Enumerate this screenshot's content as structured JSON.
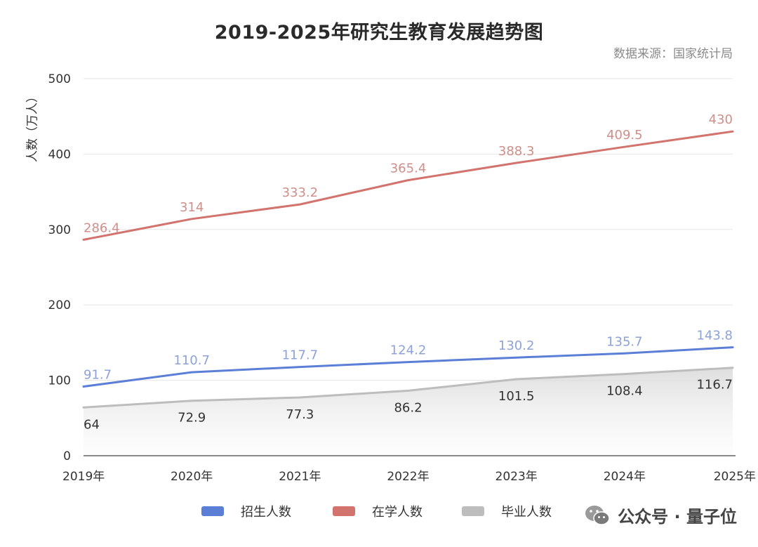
{
  "title": "2019-2025年研究生教育发展趋势图",
  "source": "数据来源：国家统计局",
  "watermark": "公众号 · 量子位",
  "chart_data": {
    "type": "line",
    "title": "2019-2025年研究生教育发展趋势图",
    "ylabel": "人数（万人）",
    "xlabel": "",
    "categories": [
      "2019年",
      "2020年",
      "2021年",
      "2022年",
      "2023年",
      "2024年",
      "2025年"
    ],
    "ylim": [
      0,
      500
    ],
    "yticks": [
      0,
      100,
      200,
      300,
      400,
      500
    ],
    "grid": true,
    "legend_position": "bottom",
    "series": [
      {
        "name": "招生人数",
        "color": "#5b7fd6",
        "values": [
          91.7,
          110.7,
          117.7,
          124.2,
          130.2,
          135.7,
          143.8
        ],
        "labels": [
          "91.7",
          "110.7",
          "117.7",
          "124.2",
          "130.2",
          "135.7",
          "143.8"
        ]
      },
      {
        "name": "在学人数",
        "color": "#d2736d",
        "values": [
          286.4,
          314,
          333.2,
          365.4,
          388.3,
          409.5,
          430
        ],
        "labels": [
          "286.4",
          "314",
          "333.2",
          "365.4",
          "388.3",
          "409.5",
          "430"
        ]
      },
      {
        "name": "毕业人数",
        "color": "#bdbdbd",
        "fill": "area",
        "values": [
          64,
          72.9,
          77.3,
          86.2,
          101.5,
          108.4,
          116.7
        ],
        "labels": [
          "64",
          "72.9",
          "77.3",
          "86.2",
          "101.5",
          "108.4",
          "116.7"
        ]
      }
    ]
  }
}
